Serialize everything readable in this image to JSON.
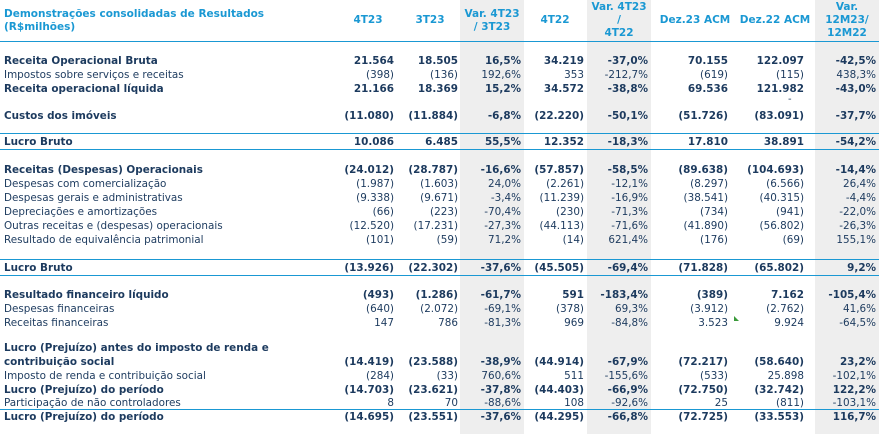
{
  "header": {
    "title": "Demonstrações consolidadas de Resultados (R$milhões)",
    "columns": [
      "4T23",
      "3T23",
      "Var. 4T23\n/ 3T23",
      "4T22",
      "Var. 4T23 /\n4T22",
      "Dez.23 ACM",
      "Dez.22 ACM",
      "Var.\n12M23/\n12M22"
    ]
  },
  "rows": [
    {
      "label": "Receita Operacional Bruta",
      "values": [
        "21.564",
        "18.505",
        "16,5%",
        "34.219",
        "-37,0%",
        "70.155",
        "122.097",
        "-42,5%"
      ]
    },
    {
      "label": "Impostos sobre serviços e receitas",
      "values": [
        "(398)",
        "(136)",
        "192,6%",
        "353",
        "-212,7%",
        "(619)",
        "(115)",
        "438,3%"
      ]
    },
    {
      "label": "Receita operacional líquida",
      "values": [
        "21.166",
        "18.369",
        "15,2%",
        "34.572",
        "-38,8%",
        "69.536",
        "121.982",
        "-43,0%"
      ]
    },
    {
      "label": "Custos dos imóveis",
      "values": [
        "(11.080)",
        "(11.884)",
        "-6,8%",
        "(22.220)",
        "-50,1%",
        "(51.726)",
        "(83.091)",
        "-37,7%"
      ]
    },
    {
      "label": "Lucro Bruto",
      "values": [
        "10.086",
        "6.485",
        "55,5%",
        "12.352",
        "-18,3%",
        "17.810",
        "38.891",
        "-54,2%"
      ]
    },
    {
      "label": "Receitas (Despesas) Operacionais",
      "values": [
        "(24.012)",
        "(28.787)",
        "-16,6%",
        "(57.857)",
        "-58,5%",
        "(89.638)",
        "(104.693)",
        "-14,4%"
      ]
    },
    {
      "label": "Despesas com comercialização",
      "values": [
        "(1.987)",
        "(1.603)",
        "24,0%",
        "(2.261)",
        "-12,1%",
        "(8.297)",
        "(6.566)",
        "26,4%"
      ]
    },
    {
      "label": "Despesas gerais e administrativas",
      "values": [
        "(9.338)",
        "(9.671)",
        "-3,4%",
        "(11.239)",
        "-16,9%",
        "(38.541)",
        "(40.315)",
        "-4,4%"
      ]
    },
    {
      "label": "Depreciações e amortizações",
      "values": [
        "(66)",
        "(223)",
        "-70,4%",
        "(230)",
        "-71,3%",
        "(734)",
        "(941)",
        "-22,0%"
      ]
    },
    {
      "label": "Outras receitas e (despesas) operacionais",
      "values": [
        "(12.520)",
        "(17.231)",
        "-27,3%",
        "(44.113)",
        "-71,6%",
        "(41.890)",
        "(56.802)",
        "-26,3%"
      ]
    },
    {
      "label": "Resultado de equivalência patrimonial",
      "values": [
        "(101)",
        "(59)",
        "71,2%",
        "(14)",
        "621,4%",
        "(176)",
        "(69)",
        "155,1%"
      ]
    },
    {
      "label": "Lucro Bruto",
      "values": [
        "(13.926)",
        "(22.302)",
        "-37,6%",
        "(45.505)",
        "-69,4%",
        "(71.828)",
        "(65.802)",
        "9,2%"
      ]
    },
    {
      "label": "Resultado financeiro líquido",
      "values": [
        "(493)",
        "(1.286)",
        "-61,7%",
        "591",
        "-183,4%",
        "(389)",
        "7.162",
        "-105,4%"
      ]
    },
    {
      "label": "Despesas financeiras",
      "values": [
        "(640)",
        "(2.072)",
        "-69,1%",
        "(378)",
        "69,3%",
        "(3.912)",
        "(2.762)",
        "41,6%"
      ]
    },
    {
      "label": "Receitas financeiras",
      "values": [
        "147",
        "786",
        "-81,3%",
        "969",
        "-84,8%",
        "3.523",
        "9.924",
        "-64,5%"
      ]
    },
    {
      "label": "Lucro (Prejuízo) antes do imposto de renda e contribuição social",
      "values": [
        "(14.419)",
        "(23.588)",
        "-38,9%",
        "(44.914)",
        "-67,9%",
        "(72.217)",
        "(58.640)",
        "23,2%"
      ]
    },
    {
      "label": "Imposto de renda e contribuição social",
      "values": [
        "(284)",
        "(33)",
        "760,6%",
        "511",
        "-155,6%",
        "(533)",
        "25.898",
        "-102,1%"
      ]
    },
    {
      "label": "Lucro (Prejuízo) do período",
      "values": [
        "(14.703)",
        "(23.621)",
        "-37,8%",
        "(44.403)",
        "-66,9%",
        "(72.750)",
        "(32.742)",
        "122,2%"
      ]
    },
    {
      "label": "Participação de não controladores",
      "values": [
        "8",
        "70",
        "-88,6%",
        "108",
        "-92,6%",
        "25",
        "(811)",
        "-103,1%"
      ]
    },
    {
      "label": "Lucro (Prejuízo) do período",
      "values": [
        "(14.695)",
        "(23.551)",
        "-37,6%",
        "(44.295)",
        "-66,8%",
        "(72.725)",
        "(33.553)",
        "116,7%"
      ]
    }
  ],
  "colors": {
    "accent": "#1a98d3",
    "text": "#1c3a5e",
    "shade": "#eeeeee"
  }
}
